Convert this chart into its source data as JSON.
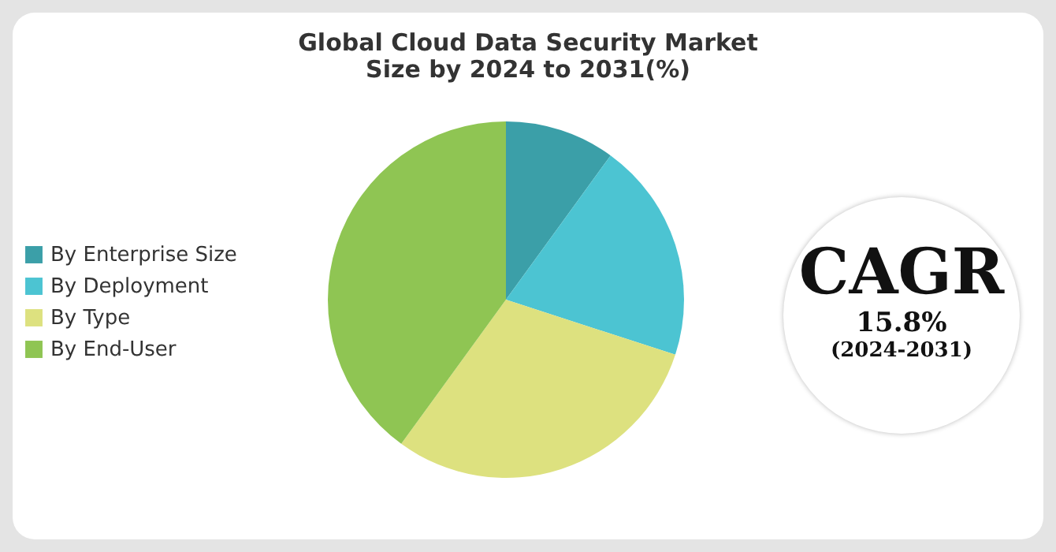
{
  "chart_data": {
    "type": "pie",
    "title": "Global Cloud Data Security Market\nSize by 2024 to 2031(%)",
    "categories": [
      "By Enterprise Size",
      "By Deployment",
      "By Type",
      "By End-User"
    ],
    "values": [
      10,
      20,
      30,
      40
    ],
    "colors": [
      "#3b9fa8",
      "#4cc4d2",
      "#dde17f",
      "#8fc553"
    ],
    "legend": "left",
    "annotations": [
      "CAGR",
      "15.8%",
      "(2024-2031)"
    ]
  }
}
